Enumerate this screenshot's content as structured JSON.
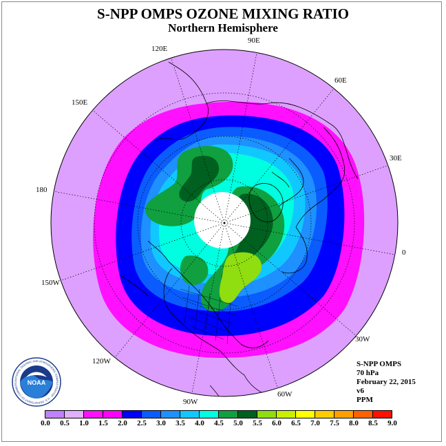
{
  "title": "S-NPP OMPS OZONE MIXING RATIO",
  "subtitle": "Northern Hemisphere",
  "info": [
    "S-NPP OMPS",
    "70 hPa",
    "February 22, 2015",
    "v6",
    "PPM"
  ],
  "longitude_labels": [
    "90E",
    "60E",
    "30E",
    "0",
    "30W",
    "60W",
    "90W",
    "120W",
    "150W",
    "180",
    "150E",
    "120E"
  ],
  "logo": {
    "name": "noaa-logo",
    "text": "NOAA",
    "ring_text": "NATIONAL OCEANIC AND ATMOSPHERIC ADMINISTRATION · U.S. DEPARTMENT OF COMMERCE"
  },
  "colorbar": {
    "ticks": [
      "0.0",
      "0.5",
      "1.0",
      "1.5",
      "2.0",
      "2.5",
      "3.0",
      "3.5",
      "4.0",
      "4.5",
      "5.0",
      "5.5",
      "6.0",
      "6.5",
      "7.0",
      "7.5",
      "8.0",
      "8.5",
      "9.0"
    ],
    "colors": [
      "#c080ff",
      "#e0b0ff",
      "#ff10ff",
      "#ff00ff",
      "#0000ff",
      "#0a5cff",
      "#1e90ff",
      "#10c8ff",
      "#00ffe0",
      "#10a040",
      "#006020",
      "#90dd10",
      "#c8f000",
      "#ffff00",
      "#ffcc00",
      "#ffa000",
      "#ff6000",
      "#ff1000",
      "#800000"
    ]
  },
  "colors": {
    "background_disk": "#dda0ff",
    "ring_magenta": "#ff10ff",
    "ring_blue": "#0000ff",
    "ring_midblue": "#0a5cff",
    "ring_lightblue": "#1e90ff",
    "ring_cyan": "#10c8ff",
    "ring_aqua": "#00ffe0",
    "patch_green": "#10a040",
    "patch_darkgreen": "#006020",
    "patch_yellowgreen": "#90dd10",
    "polar_cap": "#ffffff"
  }
}
